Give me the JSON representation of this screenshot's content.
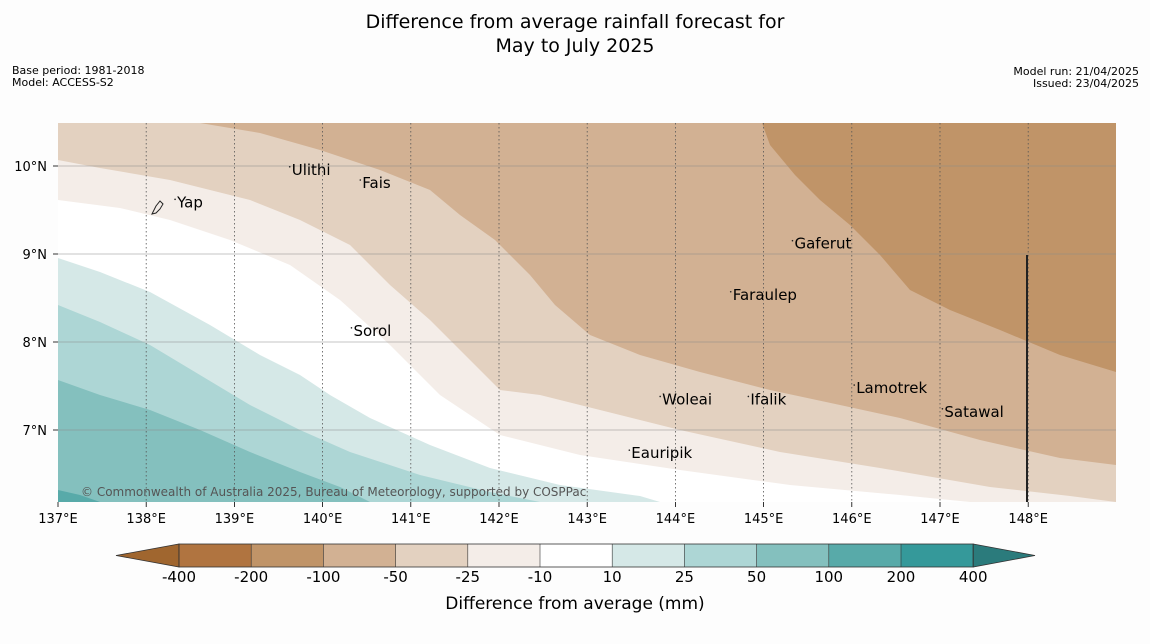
{
  "title": {
    "line1": "Difference from average rainfall forecast for",
    "line2": "May to July 2025"
  },
  "meta_left": {
    "base_period": "Base period: 1981-2018",
    "model": "Model: ACCESS-S2"
  },
  "meta_right": {
    "model_run": "Model run: 21/04/2025",
    "issued": "Issued: 23/04/2025"
  },
  "axes": {
    "lon_ticks": [
      "137°E",
      "138°E",
      "139°E",
      "140°E",
      "141°E",
      "142°E",
      "143°E",
      "144°E",
      "145°E",
      "146°E",
      "147°E",
      "148°E"
    ],
    "lat_ticks": [
      "10°N",
      "9°N",
      "8°N",
      "7°N"
    ]
  },
  "places": [
    {
      "name": "Yap",
      "lon": 138.35,
      "lat": 9.53
    },
    {
      "name": "Ulithi",
      "lon": 139.65,
      "lat": 9.9
    },
    {
      "name": "Fais",
      "lon": 140.45,
      "lat": 9.75
    },
    {
      "name": "Gaferut",
      "lon": 145.35,
      "lat": 9.06
    },
    {
      "name": "Faraulep",
      "lon": 144.65,
      "lat": 8.48
    },
    {
      "name": "Sorol",
      "lon": 140.35,
      "lat": 8.07
    },
    {
      "name": "Lamotrek",
      "lon": 146.05,
      "lat": 7.42
    },
    {
      "name": "Woleai",
      "lon": 143.85,
      "lat": 7.29
    },
    {
      "name": "Ifalik",
      "lon": 144.85,
      "lat": 7.29
    },
    {
      "name": "Satawal",
      "lon": 147.05,
      "lat": 7.15
    },
    {
      "name": "Eauripik",
      "lon": 143.5,
      "lat": 6.68
    }
  ],
  "copyright": "© Commonwealth of Australia 2025, Bureau of Meteorology, supported by COSPPac",
  "colorbar": {
    "title": "Difference from average (mm)",
    "ticks": [
      "-400",
      "-200",
      "-100",
      "-50",
      "-25",
      "-10",
      "10",
      "25",
      "50",
      "100",
      "200",
      "400"
    ],
    "colors": [
      "#a0662f",
      "#b07440",
      "#c09468",
      "#d2b193",
      "#e3d1c0",
      "#f4ede8",
      "#ffffff",
      "#d5e8e7",
      "#add6d5",
      "#84c0be",
      "#58aaa9",
      "#35999a",
      "#2b7b7c"
    ]
  },
  "chart_data": {
    "type": "contour-map",
    "region": {
      "lon_range": [
        137,
        149
      ],
      "lat_range": [
        6.2,
        10.5
      ]
    },
    "levels": [
      "-100",
      "-50",
      "-25",
      "-10",
      "10",
      "25",
      "50",
      "100"
    ]
  }
}
